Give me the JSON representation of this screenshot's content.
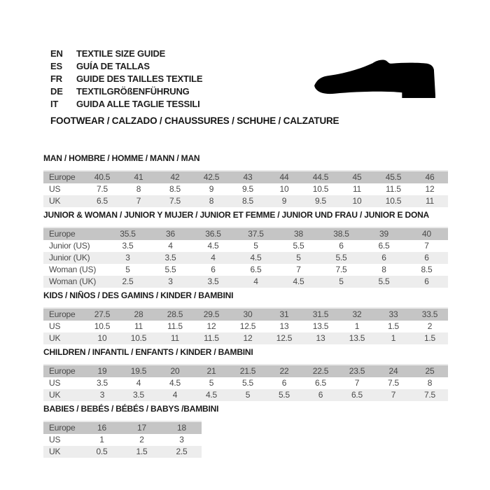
{
  "header": {
    "languages": [
      {
        "code": "EN",
        "label": "TEXTILE SIZE GUIDE"
      },
      {
        "code": "ES",
        "label": "GUÍA DE TALLAS"
      },
      {
        "code": "FR",
        "label": "GUIDE DES TAILLES TEXTILE"
      },
      {
        "code": "DE",
        "label": "TEXTILGRÖßENFÜHRUNG"
      },
      {
        "code": "IT",
        "label": "GUIDA ALLE TAGLIE TESSILI"
      }
    ],
    "category_line": "FOOTWEAR / CALZADO / CHAUSSURES / SCHUHE / CALZATURE",
    "shoe_icon": "dress-shoe-silhouette"
  },
  "colors": {
    "header_row_bg": "#c5c5c5",
    "alt_row_bg": "#ededed",
    "table_text": "#4a4a4a",
    "title_text": "#1b1b1b",
    "shoe": "#000000"
  },
  "tables": [
    {
      "id": "man",
      "title": "MAN / HOMBRE / HOMME / MANN / MAN",
      "rows": [
        {
          "label": "Europe",
          "values": [
            "40.5",
            "41",
            "42",
            "42.5",
            "43",
            "44",
            "44.5",
            "45",
            "45.5",
            "46"
          ]
        },
        {
          "label": "US",
          "values": [
            "7.5",
            "8",
            "8.5",
            "9",
            "9.5",
            "10",
            "10.5",
            "11",
            "11.5",
            "12"
          ]
        },
        {
          "label": "UK",
          "values": [
            "6.5",
            "7",
            "7.5",
            "8",
            "8.5",
            "9",
            "9.5",
            "10",
            "10.5",
            "11"
          ]
        }
      ]
    },
    {
      "id": "junior-woman",
      "title": "JUNIOR & WOMAN / JUNIOR Y MUJER / JUNIOR ET FEMME / JUNIOR UND FRAU / JUNIOR E DONA",
      "rows": [
        {
          "label": "Europe",
          "values": [
            "35.5",
            "36",
            "36.5",
            "37.5",
            "38",
            "38.5",
            "39",
            "40"
          ]
        },
        {
          "label": "Junior (US)",
          "values": [
            "3.5",
            "4",
            "4.5",
            "5",
            "5.5",
            "6",
            "6.5",
            "7"
          ]
        },
        {
          "label": "Junior (UK)",
          "values": [
            "3",
            "3.5",
            "4",
            "4.5",
            "5",
            "5.5",
            "6",
            "6"
          ]
        },
        {
          "label": "Woman (US)",
          "values": [
            "5",
            "5.5",
            "6",
            "6.5",
            "7",
            "7.5",
            "8",
            "8.5"
          ]
        },
        {
          "label": "Woman (UK)",
          "values": [
            "2.5",
            "3",
            "3.5",
            "4",
            "4.5",
            "5",
            "5.5",
            "6"
          ]
        }
      ]
    },
    {
      "id": "kids",
      "title": "KIDS / NIÑOS / DES GAMINS / KINDER / BAMBINI",
      "rows": [
        {
          "label": "Europe",
          "values": [
            "27.5",
            "28",
            "28.5",
            "29.5",
            "30",
            "31",
            "31.5",
            "32",
            "33",
            "33.5"
          ]
        },
        {
          "label": "US",
          "values": [
            "10.5",
            "11",
            "11.5",
            "12",
            "12.5",
            "13",
            "13.5",
            "1",
            "1.5",
            "2"
          ]
        },
        {
          "label": "UK",
          "values": [
            "10",
            "10.5",
            "11",
            "11.5",
            "12",
            "12.5",
            "13",
            "13.5",
            "1",
            "1.5"
          ]
        }
      ]
    },
    {
      "id": "children",
      "title": "CHILDREN / INFANTIL / ENFANTS / KINDER / BAMBINI",
      "rows": [
        {
          "label": "Europe",
          "values": [
            "19",
            "19.5",
            "20",
            "21",
            "21.5",
            "22",
            "22.5",
            "23.5",
            "24",
            "25"
          ]
        },
        {
          "label": "US",
          "values": [
            "3.5",
            "4",
            "4.5",
            "5",
            "5.5",
            "6",
            "6.5",
            "7",
            "7.5",
            "8"
          ]
        },
        {
          "label": "UK",
          "values": [
            "3",
            "3.5",
            "4",
            "4.5",
            "5",
            "5.5",
            "6",
            "6.5",
            "7",
            "7.5"
          ]
        }
      ]
    },
    {
      "id": "babies",
      "title": "BABIES  / BEBÉS / BÉBÉS / BABYS /BAMBINI",
      "rows": [
        {
          "label": "Europe",
          "values": [
            "16",
            "17",
            "18"
          ]
        },
        {
          "label": "US",
          "values": [
            "1",
            "2",
            "3"
          ]
        },
        {
          "label": "UK",
          "values": [
            "0.5",
            "1.5",
            "2.5"
          ]
        }
      ]
    }
  ]
}
